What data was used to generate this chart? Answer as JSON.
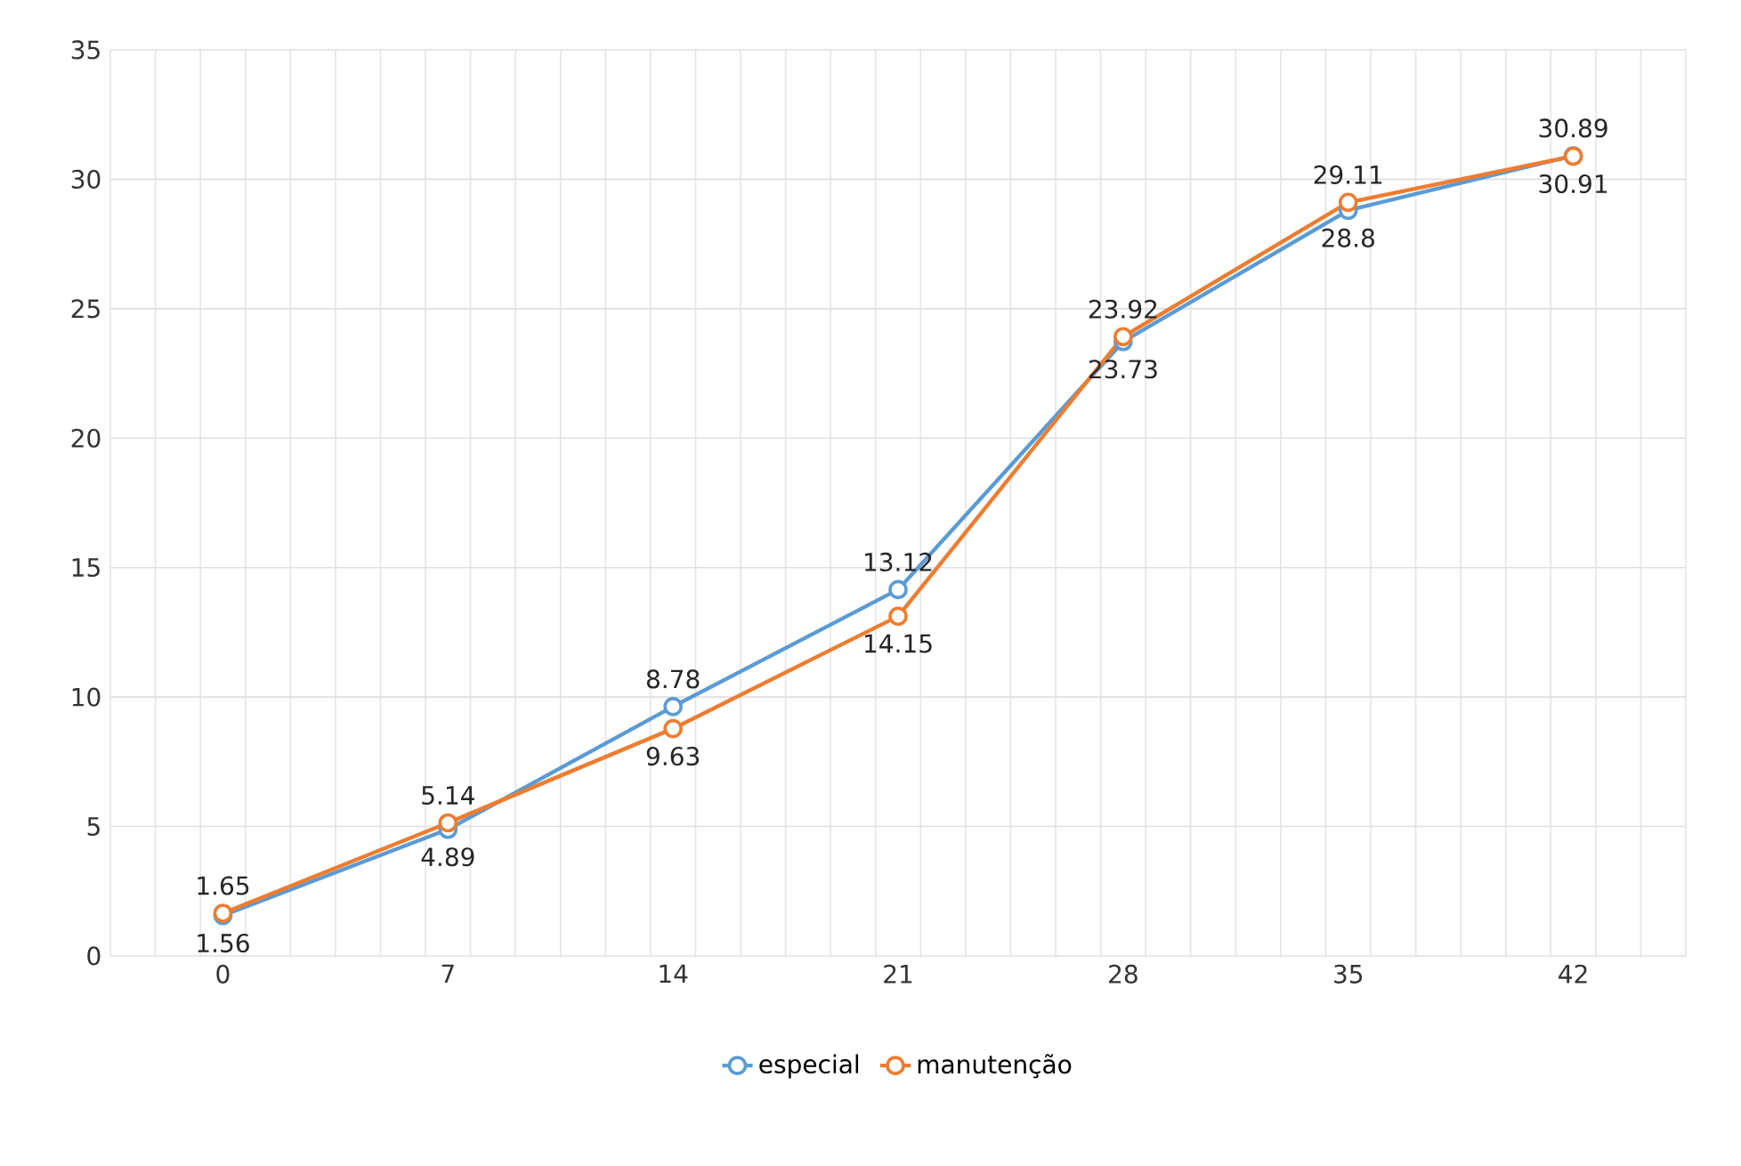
{
  "chart_data": {
    "type": "line",
    "categories": [
      "0",
      "7",
      "14",
      "21",
      "28",
      "35",
      "42"
    ],
    "series": [
      {
        "name": "especial",
        "color": "#5b9bd5",
        "values": [
          1.56,
          4.89,
          9.63,
          14.15,
          23.73,
          28.8,
          30.91
        ]
      },
      {
        "name": "manutenção",
        "color": "#ed7d31",
        "values": [
          1.65,
          5.14,
          8.78,
          13.12,
          23.92,
          29.11,
          30.89
        ]
      }
    ],
    "ylim": [
      0,
      35
    ],
    "yticks": [
      0,
      5,
      10,
      15,
      20,
      25,
      30,
      35
    ],
    "grid": true,
    "legend": "bottom",
    "marker": "circle",
    "line_style": "solid",
    "data_labels": true
  }
}
